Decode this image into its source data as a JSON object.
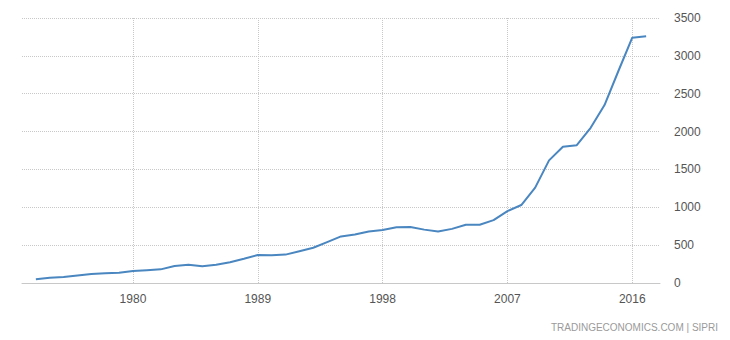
{
  "chart_data": {
    "type": "line",
    "x": [
      1973,
      1974,
      1975,
      1976,
      1977,
      1978,
      1979,
      1980,
      1981,
      1982,
      1983,
      1984,
      1985,
      1986,
      1987,
      1988,
      1989,
      1990,
      1991,
      1992,
      1993,
      1994,
      1995,
      1996,
      1997,
      1998,
      1999,
      2000,
      2001,
      2002,
      2003,
      2004,
      2005,
      2006,
      2007,
      2008,
      2009,
      2010,
      2011,
      2012,
      2013,
      2014,
      2015,
      2016,
      2017
    ],
    "values": [
      50,
      70,
      80,
      100,
      120,
      130,
      135,
      160,
      170,
      180,
      225,
      240,
      220,
      240,
      275,
      320,
      370,
      365,
      375,
      420,
      465,
      540,
      615,
      640,
      680,
      700,
      735,
      740,
      705,
      680,
      715,
      770,
      770,
      830,
      950,
      1030,
      1260,
      1620,
      1800,
      1820,
      2050,
      2350,
      2800,
      3240,
      3260
    ],
    "color": "#4a86c0",
    "xlim": [
      1972,
      2018
    ],
    "xticks": [
      1980,
      1989,
      1998,
      2007,
      2016
    ],
    "ylim": [
      0,
      3500
    ],
    "yticks": [
      0,
      500,
      1000,
      1500,
      2000,
      2500,
      3000,
      3500
    ],
    "grid": true,
    "annotations": [
      "TRADINGECONOMICS.COM | SIPRI"
    ]
  }
}
